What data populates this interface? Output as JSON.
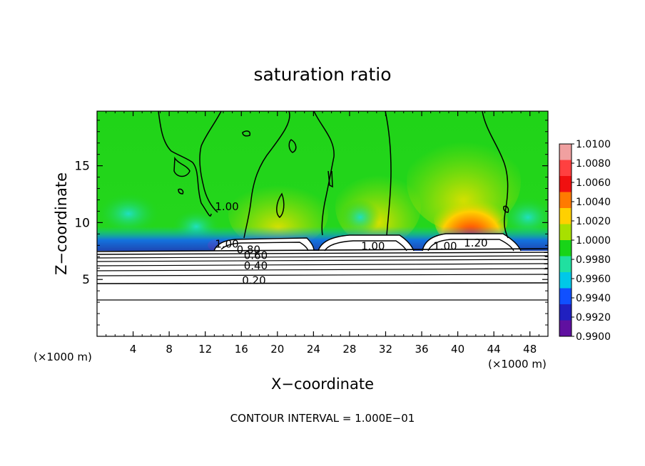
{
  "chart_data": {
    "type": "heatmap",
    "title": "saturation ratio",
    "xlabel": "X−coordinate",
    "ylabel": "Z−coordinate",
    "x_unit_left": "(×1000 m)",
    "x_unit_right": "(×1000 m)",
    "xlim": [
      0,
      50
    ],
    "ylim": [
      0,
      19.8
    ],
    "x_ticks": [
      4,
      8,
      12,
      16,
      20,
      24,
      28,
      32,
      36,
      40,
      44,
      48
    ],
    "y_ticks": [
      5,
      10,
      15
    ],
    "footer": "CONTOUR INTERVAL = 1.000E−01",
    "colorbar": {
      "range": [
        0.99,
        1.01
      ],
      "labels": [
        "1.0100",
        "1.0080",
        "1.0060",
        "1.0040",
        "1.0020",
        "1.0000",
        "0.9980",
        "0.9960",
        "0.9940",
        "0.9920",
        "0.9900"
      ],
      "colors": [
        "#f0a0a0",
        "#ff4040",
        "#f01010",
        "#ff7a00",
        "#ffd000",
        "#a8e000",
        "#18d418",
        "#20e0a0",
        "#00c8e8",
        "#1050ff",
        "#2020c0",
        "#6010a0"
      ]
    },
    "contour_labels": [
      {
        "text": "1.00",
        "x": 14.4,
        "z": 11.1
      },
      {
        "text": "1.00",
        "x": 14.4,
        "z": 7.8
      },
      {
        "text": "0.80",
        "x": 16.8,
        "z": 7.3
      },
      {
        "text": "0.60",
        "x": 17.6,
        "z": 6.8
      },
      {
        "text": "0.40",
        "x": 17.6,
        "z": 5.9
      },
      {
        "text": "0.20",
        "x": 17.4,
        "z": 4.6
      },
      {
        "text": "1.00",
        "x": 30.6,
        "z": 7.6
      },
      {
        "text": "1.00",
        "x": 38.6,
        "z": 7.6
      },
      {
        "text": "1.20",
        "x": 42.0,
        "z": 7.9
      }
    ]
  }
}
